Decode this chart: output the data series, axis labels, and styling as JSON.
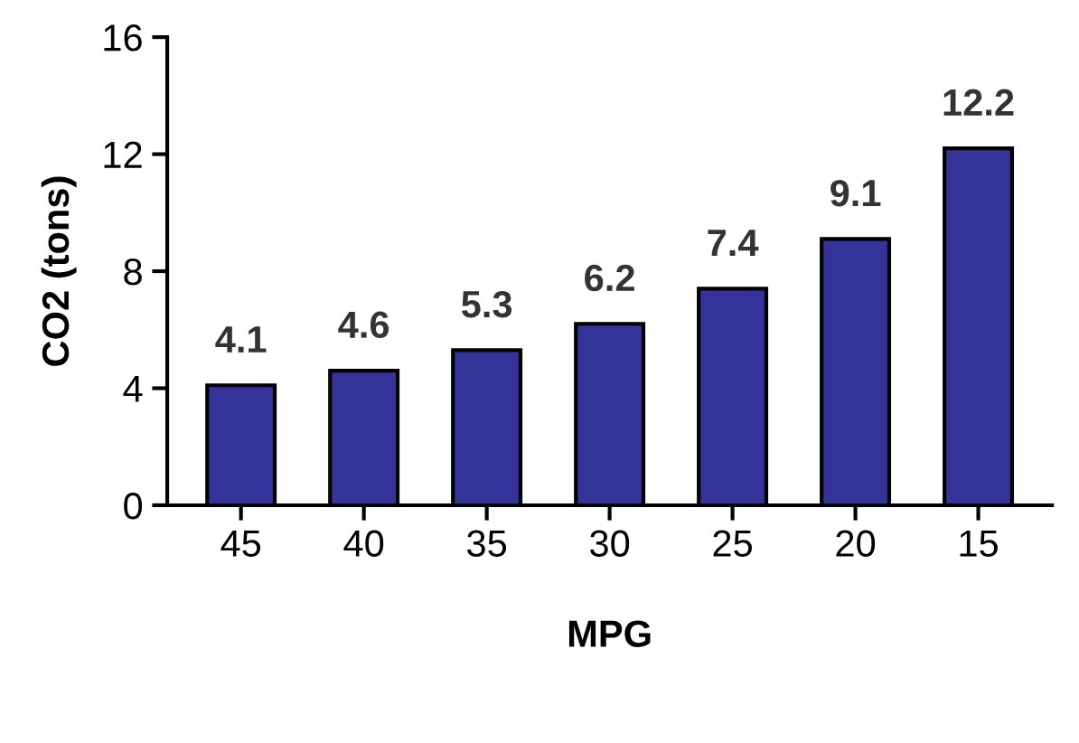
{
  "chart_data": {
    "type": "bar",
    "xlabel": "MPG",
    "ylabel": "CO2 (tons)",
    "categories": [
      "45",
      "40",
      "35",
      "30",
      "25",
      "20",
      "15"
    ],
    "values": [
      4.1,
      4.6,
      5.3,
      6.2,
      7.4,
      9.1,
      12.2
    ],
    "color": "#333399",
    "ylim": [
      0,
      16
    ],
    "yticks": [
      0,
      4,
      8,
      12,
      16
    ],
    "data_labels": true,
    "grid": false
  }
}
